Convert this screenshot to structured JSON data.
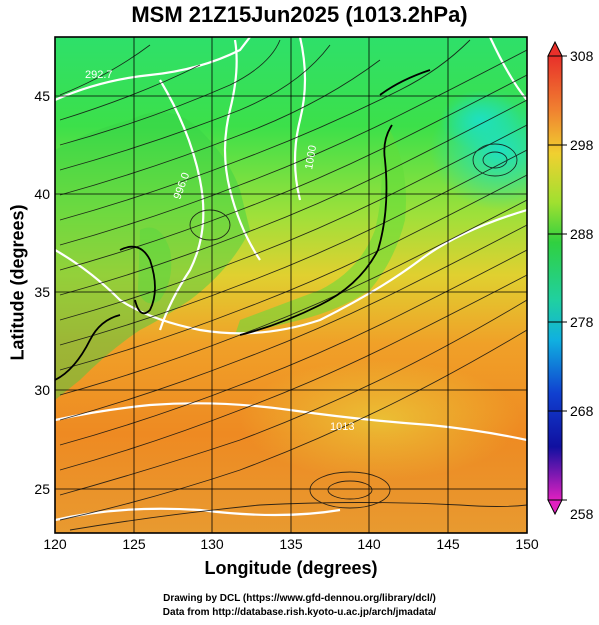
{
  "title": "MSM 21Z15Jun2025 (1013.2hPa)",
  "axes": {
    "xlabel": "Longitude (degrees)",
    "ylabel": "Latitude  (degrees)",
    "x_ticks": [
      "120",
      "125",
      "130",
      "135",
      "140",
      "145",
      "150"
    ],
    "y_ticks": [
      "25",
      "30",
      "35",
      "40",
      "45"
    ],
    "lon_range": [
      120,
      150
    ],
    "lat_range": [
      22.4,
      47.6
    ]
  },
  "colorbar": {
    "labels": [
      "308",
      "298",
      "288",
      "278",
      "268",
      "258"
    ],
    "range": [
      258,
      308
    ]
  },
  "contour_labels": [
    "292.7",
    "996.0",
    "1000",
    "1013"
  ],
  "credits": {
    "line1": "Drawing by DCL (https://www.gfd-dennou.org/library/dcl/)",
    "line2": "Data from http://database.rish.kyoto-u.ac.jp/arch/jmadata/"
  },
  "colors": {
    "frame": "#000000",
    "contour": "#ffffff",
    "coast": "#000000"
  }
}
